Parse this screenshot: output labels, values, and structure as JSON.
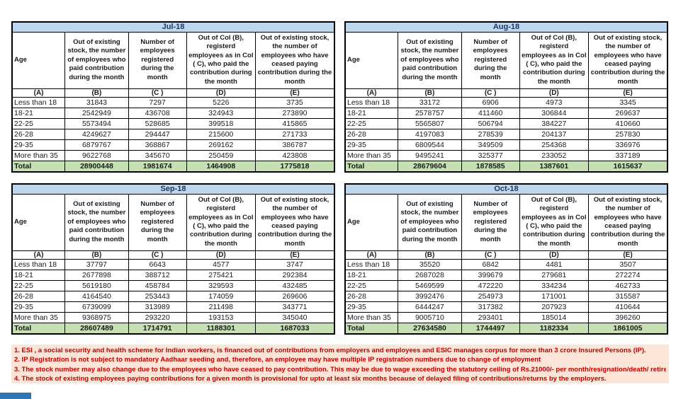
{
  "colors": {
    "month_header_bg": "#BDD7EE",
    "month_header_text": "#1F3864",
    "total_bg": "#C6E0B4",
    "notes_bg": "#FCE4D6",
    "notes_text": "#C00000",
    "border": "#000000",
    "tab_blue": "#2E75B6"
  },
  "table_headers": {
    "age": "Age",
    "b": "Out of existing stock, the number of employees who paid contribution during the month",
    "c": "Number of employees registered during the month",
    "d": "Out of Col (B), registerd employees as in Col ( C), who paid the contribution during the month",
    "e": "Out of existing stock, the number of  employees who have ceased paying contribution during the month"
  },
  "column_letters": [
    "(A)",
    "(B)",
    "(C )",
    "(D)",
    "(E)"
  ],
  "tables": [
    {
      "title": "Jul-18",
      "rows": [
        [
          "Less than 18",
          "31843",
          "7297",
          "5226",
          "3735"
        ],
        [
          "18-21",
          "2542949",
          "436708",
          "324943",
          "273890"
        ],
        [
          "22-25",
          "5573494",
          "528685",
          "399518",
          "415865"
        ],
        [
          "26-28",
          "4249627",
          "294447",
          "215600",
          "271733"
        ],
        [
          "29-35",
          "6879767",
          "368867",
          "269162",
          "386787"
        ],
        [
          "More than 35",
          "9622768",
          "345670",
          "250459",
          "423808"
        ]
      ],
      "total": [
        "Total",
        "28900448",
        "1981674",
        "1464908",
        "1775818"
      ]
    },
    {
      "title": "Aug-18",
      "rows": [
        [
          "Less than 18",
          "33172",
          "6906",
          "4973",
          "3345"
        ],
        [
          "18-21",
          "2578757",
          "411460",
          "306844",
          "269637"
        ],
        [
          "22-25",
          "5565807",
          "506794",
          "384227",
          "410660"
        ],
        [
          "26-28",
          "4197083",
          "278539",
          "204137",
          "257830"
        ],
        [
          "29-35",
          "6809544",
          "349509",
          "254368",
          "336976"
        ],
        [
          "More than 35",
          "9495241",
          "325377",
          "233052",
          "337189"
        ]
      ],
      "total": [
        "Total",
        "28679604",
        "1878585",
        "1387601",
        "1615637"
      ]
    },
    {
      "title": "Sep-18",
      "rows": [
        [
          "Less than 18",
          "37797",
          "6643",
          "4577",
          "3747"
        ],
        [
          "18-21",
          "2677898",
          "388712",
          "275421",
          "292384"
        ],
        [
          "22-25",
          "5619180",
          "458784",
          "329593",
          "432485"
        ],
        [
          "26-28",
          "4164540",
          "253443",
          "174059",
          "269606"
        ],
        [
          "29-35",
          "6739099",
          "313989",
          "211498",
          "343771"
        ],
        [
          "More than 35",
          "9368975",
          "293220",
          "193153",
          "345040"
        ]
      ],
      "total": [
        "Total",
        "28607489",
        "1714791",
        "1188301",
        "1687033"
      ]
    },
    {
      "title": "Oct-18",
      "rows": [
        [
          "Less than 18",
          "35520",
          "6842",
          "4481",
          "3507"
        ],
        [
          "18-21",
          "2687028",
          "399679",
          "279681",
          "272274"
        ],
        [
          "22-25",
          "5469599",
          "472220",
          "334234",
          "462733"
        ],
        [
          "26-28",
          "3992476",
          "254973",
          "171001",
          "315587"
        ],
        [
          "29-35",
          "6444247",
          "317382",
          "207923",
          "410644"
        ],
        [
          "More than 35",
          "9005710",
          "293401",
          "185014",
          "396260"
        ]
      ],
      "total": [
        "Total",
        "27634580",
        "1744497",
        "1182334",
        "1861005"
      ]
    }
  ],
  "notes": [
    "1. ESI , a social security and health scheme for Indian workers, is financed out of contributions from employers and employees and ESIC manages corpus for more than 3 crore Insured Persons (IP).",
    "2. IP Registration is not subject to mandatory Aadhaar seeding and, therefore, an employee may have multiple IP registration numbers due to change of employment",
    "3. The stock number may also change due to the employees who have ceased to pay contribution. This may  be due to wage exceeding the statutory ceiling of  Rs.21000/- per month/resignation/death/ retirement/dismissal.",
    "4. The stock of existing employees paying contributions for a given month is provisional for upto at least six months because of delayed filing of contributions/returns by the employers."
  ]
}
